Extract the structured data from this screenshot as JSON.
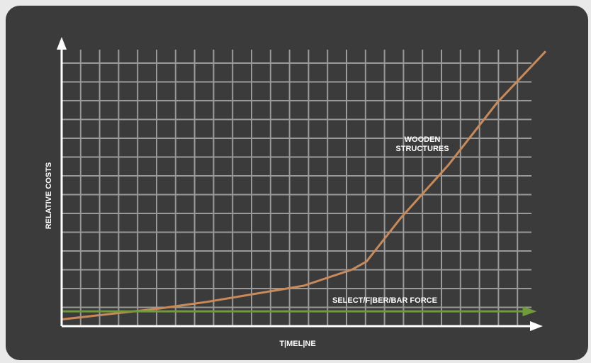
{
  "chart_data": {
    "type": "line",
    "title": "",
    "xlabel": "T|MEL|NE",
    "ylabel": "RELATIVE COSTS",
    "grid": true,
    "legend": "none",
    "xlim": [
      0,
      10
    ],
    "ylim": [
      0,
      10
    ],
    "series": [
      {
        "name": "WOODEN STRUCTURES",
        "label_lines": [
          "WOODEN",
          "STRUCTURES"
        ],
        "color": "#c98a5a",
        "x": [
          0,
          1,
          2,
          3,
          4,
          5,
          6,
          6.3,
          7,
          8,
          9,
          10
        ],
        "y": [
          0.25,
          0.45,
          0.65,
          0.9,
          1.2,
          1.5,
          2.1,
          2.4,
          4.0,
          6.0,
          8.3,
          10.2
        ]
      },
      {
        "name": "SELECT/FIBER/BAR FORCE",
        "label_lines": [
          "SELECT/F|BER/BAR FORCE"
        ],
        "color": "#6f9b3a",
        "x": [
          0,
          9.7
        ],
        "y": [
          0.55,
          0.55
        ]
      }
    ]
  },
  "colors": {
    "panel": "#3b3b3b",
    "background": "#e9e9e9",
    "grid": "#9a9a9a",
    "axis": "#ffffff"
  }
}
